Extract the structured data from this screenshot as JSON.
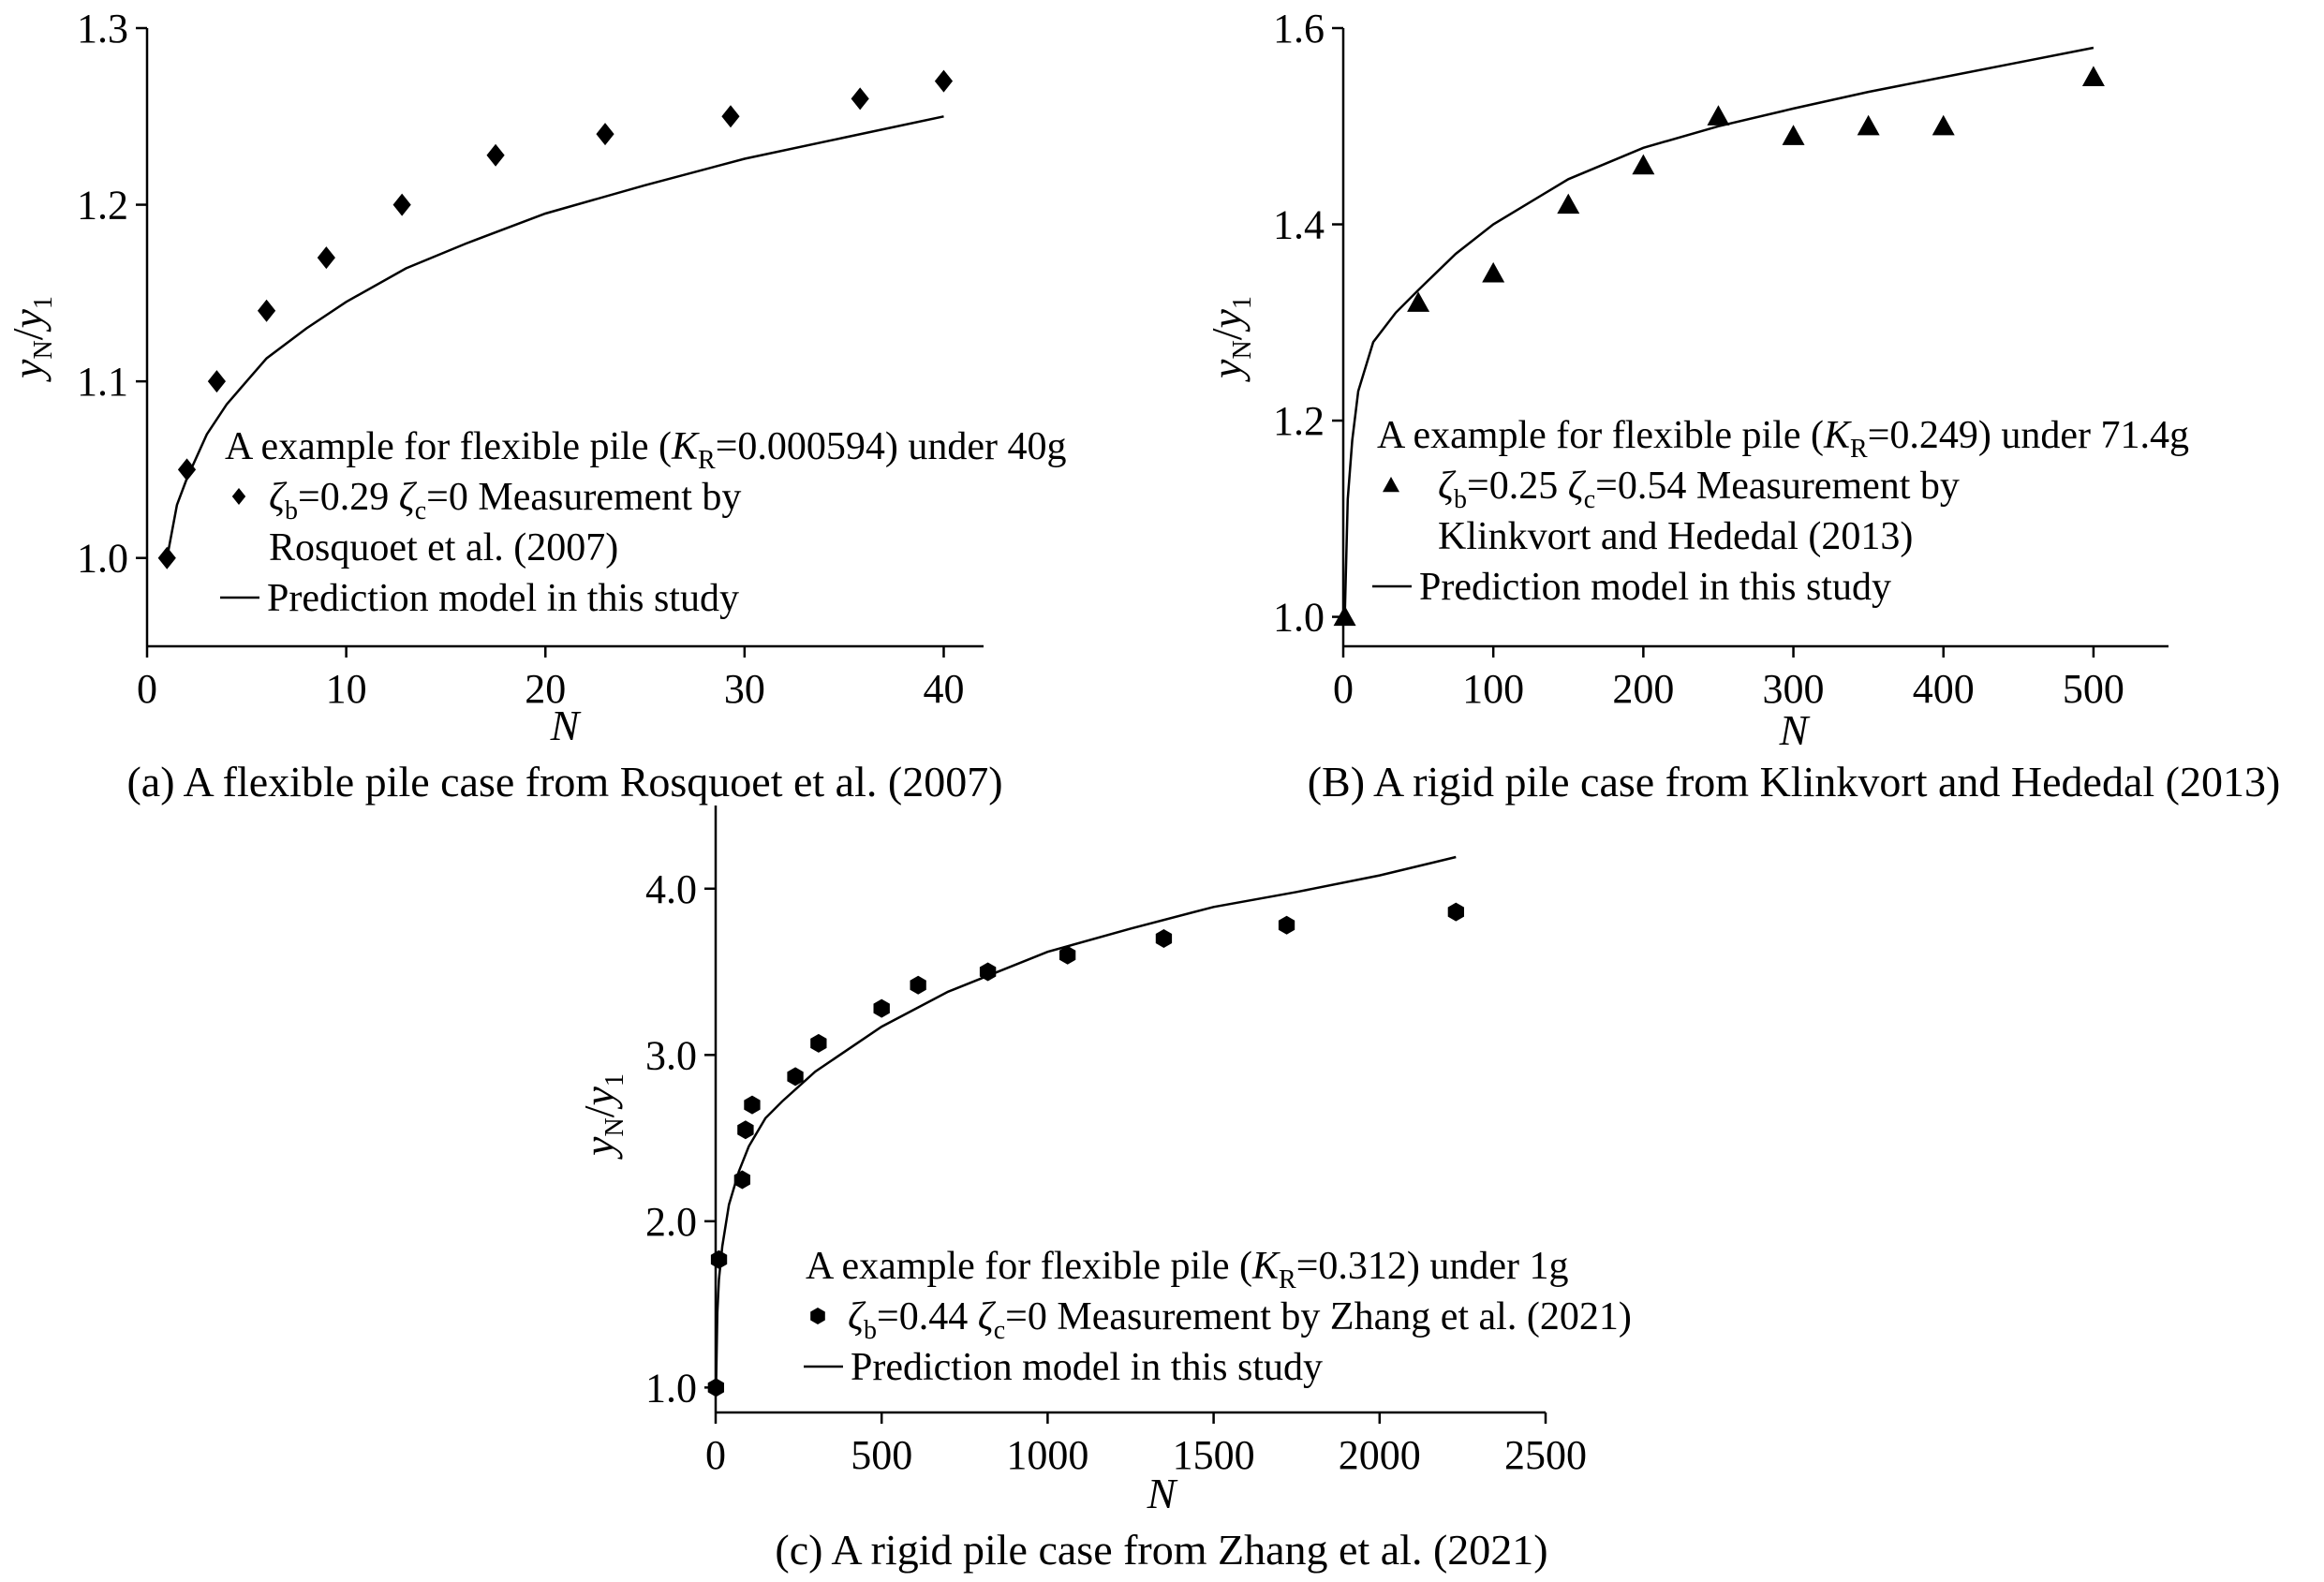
{
  "chart_data": [
    {
      "type": "scatter",
      "panel": "a",
      "caption": "(a) A flexible pile case from Rosquoet et al. (2007)",
      "xlabel": "N",
      "ylabel": "y_N/y_1",
      "xlim": [
        0,
        42
      ],
      "ylim": [
        0.95,
        1.3
      ],
      "xticks": [
        0,
        10,
        20,
        30,
        40
      ],
      "xtick_labels": [
        "0",
        "10",
        "20",
        "30",
        "40"
      ],
      "yticks": [
        1.0,
        1.1,
        1.2,
        1.3
      ],
      "ytick_labels": [
        "1.0",
        "1.1",
        "1.2",
        "1.3"
      ],
      "legend": {
        "title": [
          "A example for flexible pile (",
          "K",
          "R",
          "=0.000594) under 40g"
        ],
        "measure_line1": [
          "ζ",
          "b",
          "=0.29 ",
          "ζ",
          "c",
          "=0  Measurement by"
        ],
        "measure_line2": "Rosquoet et al. (2007)",
        "model_label": "Prediction model in this study"
      },
      "grid": false,
      "series": [
        {
          "name": "Measurement",
          "marker": "diamond",
          "x": [
            1,
            2,
            3.5,
            6,
            9,
            12.8,
            17.5,
            23,
            29.3,
            35.8,
            40
          ],
          "y": [
            1.0,
            1.05,
            1.1,
            1.14,
            1.17,
            1.2,
            1.228,
            1.24,
            1.25,
            1.26,
            1.27
          ]
        },
        {
          "name": "Prediction model",
          "style": "line",
          "x": [
            1,
            1.5,
            2,
            3,
            4,
            5,
            6,
            8,
            10,
            13,
            16,
            20,
            25,
            30,
            35,
            40
          ],
          "y": [
            1.0,
            1.03,
            1.045,
            1.07,
            1.087,
            1.1,
            1.113,
            1.13,
            1.145,
            1.164,
            1.178,
            1.195,
            1.211,
            1.226,
            1.238,
            1.25
          ]
        }
      ]
    },
    {
      "type": "scatter",
      "panel": "B",
      "caption": "(B) A rigid pile case from Klinkvort and Hededal (2013)",
      "xlabel": "N",
      "ylabel": "y_N/y_1",
      "xlim": [
        0,
        550
      ],
      "ylim": [
        0.97,
        1.6
      ],
      "xticks": [
        0,
        100,
        200,
        300,
        400,
        500
      ],
      "xtick_labels": [
        "0",
        "100",
        "200",
        "300",
        "400",
        "500"
      ],
      "yticks": [
        1.0,
        1.2,
        1.4,
        1.6
      ],
      "ytick_labels": [
        "1.0",
        "1.2",
        "1.4",
        "1.6"
      ],
      "legend": {
        "title": [
          "A example for flexible pile (",
          "K",
          "R",
          "=0.249) under 71.4g"
        ],
        "measure_line1": [
          "ζ",
          "b",
          "=0.25 ",
          "ζ",
          "c",
          "=0.54 Measurement by"
        ],
        "measure_line2": "Klinkvort and Hededal (2013)",
        "model_label": "Prediction model in this study"
      },
      "grid": false,
      "series": [
        {
          "name": "Measurement",
          "marker": "triangle",
          "x": [
            1,
            50,
            100,
            150,
            200,
            250,
            300,
            350,
            400,
            500
          ],
          "y": [
            1.0,
            1.32,
            1.35,
            1.42,
            1.46,
            1.51,
            1.49,
            1.5,
            1.5,
            1.55
          ]
        },
        {
          "name": "Prediction model",
          "style": "line",
          "x": [
            1,
            3,
            6,
            10,
            20,
            35,
            50,
            75,
            100,
            150,
            200,
            250,
            300,
            350,
            400,
            450,
            500
          ],
          "y": [
            1.0,
            1.12,
            1.18,
            1.23,
            1.28,
            1.31,
            1.333,
            1.37,
            1.4,
            1.446,
            1.478,
            1.5,
            1.518,
            1.535,
            1.55,
            1.565,
            1.58
          ]
        }
      ]
    },
    {
      "type": "scatter",
      "panel": "c",
      "caption": "(c) A rigid pile case from Zhang et al. (2021)",
      "xlabel": "N",
      "ylabel": "y_N/y_1",
      "xlim": [
        0,
        2500
      ],
      "ylim": [
        0.85,
        4.5
      ],
      "xticks": [
        0,
        500,
        1000,
        1500,
        2000,
        2500
      ],
      "xtick_labels": [
        "0",
        "500",
        "1000",
        "1500",
        "2000",
        "2500"
      ],
      "yticks": [
        1.0,
        2.0,
        3.0,
        4.0
      ],
      "ytick_labels": [
        "1.0",
        "2.0",
        "3.0",
        "4.0"
      ],
      "legend": {
        "title": [
          "A example for flexible pile (",
          "K",
          "R",
          "=0.312) under 1g"
        ],
        "measure_line1": [
          "ζ",
          "b",
          "=0.44 ",
          "ζ",
          "c",
          "=0 Measurement by Zhang et al. (2021)"
        ],
        "measure_line2": "",
        "model_label": "Prediction model in this study"
      },
      "grid": false,
      "series": [
        {
          "name": "Measurement",
          "marker": "hexagon",
          "x": [
            1,
            10,
            80,
            90,
            110,
            240,
            310,
            500,
            610,
            820,
            1060,
            1350,
            1720,
            2230
          ],
          "y": [
            1.0,
            1.77,
            2.25,
            2.55,
            2.7,
            2.87,
            3.07,
            3.28,
            3.42,
            3.5,
            3.6,
            3.7,
            3.78,
            3.86
          ]
        },
        {
          "name": "Prediction model",
          "style": "line",
          "x": [
            1,
            5,
            10,
            20,
            40,
            70,
            100,
            150,
            200,
            300,
            500,
            700,
            1000,
            1250,
            1500,
            1750,
            2000,
            2230
          ],
          "y": [
            1.0,
            1.45,
            1.65,
            1.85,
            2.1,
            2.3,
            2.45,
            2.62,
            2.72,
            2.9,
            3.17,
            3.38,
            3.62,
            3.76,
            3.89,
            3.98,
            4.08,
            4.19
          ]
        }
      ]
    }
  ]
}
